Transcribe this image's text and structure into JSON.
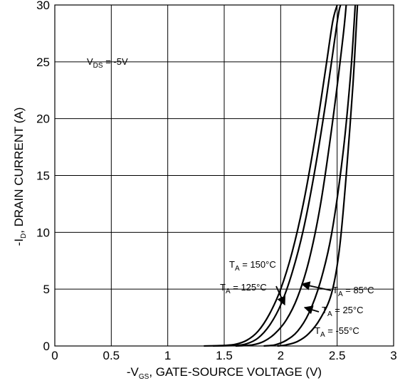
{
  "chart_data": {
    "type": "line",
    "xlabel": {
      "prefix": "-V",
      "sub": "GS",
      "rest": ", GATE-SOURCE VOLTAGE (V)"
    },
    "ylabel": {
      "prefix": "-I",
      "sub": "D",
      "rest": ", DRAIN CURRENT (A)"
    },
    "xlim": [
      0,
      3
    ],
    "ylim": [
      0,
      30
    ],
    "xticks": [
      "0",
      "0.5",
      "1",
      "1.5",
      "2",
      "2.5",
      "3"
    ],
    "yticks": [
      "0",
      "5",
      "10",
      "15",
      "20",
      "25",
      "30"
    ],
    "grid": true,
    "condition": {
      "prefix": "V",
      "sub": "DS",
      "rest": " = -5V"
    },
    "series": [
      {
        "name": "T_A = 150°C",
        "label_pre": "T",
        "label_sub": "A",
        "label_post": " = 150°C",
        "points": [
          [
            1.32,
            0
          ],
          [
            1.5,
            0.05
          ],
          [
            1.6,
            0.15
          ],
          [
            1.7,
            0.5
          ],
          [
            1.8,
            1.3
          ],
          [
            1.9,
            2.8
          ],
          [
            2.0,
            5.0
          ],
          [
            2.1,
            8.2
          ],
          [
            2.2,
            12.5
          ],
          [
            2.3,
            18.0
          ],
          [
            2.4,
            24.5
          ],
          [
            2.46,
            28.5
          ],
          [
            2.5,
            30
          ]
        ]
      },
      {
        "name": "T_A = 125°C",
        "label_pre": "T",
        "label_sub": "A",
        "label_post": " = 125°C",
        "points": [
          [
            1.4,
            0
          ],
          [
            1.6,
            0.05
          ],
          [
            1.7,
            0.2
          ],
          [
            1.8,
            0.7
          ],
          [
            1.9,
            1.8
          ],
          [
            2.0,
            3.6
          ],
          [
            2.1,
            6.4
          ],
          [
            2.2,
            10.2
          ],
          [
            2.3,
            15.3
          ],
          [
            2.4,
            21.5
          ],
          [
            2.5,
            28.5
          ],
          [
            2.53,
            30
          ]
        ]
      },
      {
        "name": "T_A = 85°C",
        "label_pre": "T",
        "label_sub": "A",
        "label_post": " = 85°C",
        "points": [
          [
            1.6,
            0
          ],
          [
            1.75,
            0.1
          ],
          [
            1.85,
            0.4
          ],
          [
            1.95,
            1.1
          ],
          [
            2.05,
            2.3
          ],
          [
            2.15,
            4.3
          ],
          [
            2.25,
            7.5
          ],
          [
            2.35,
            12.3
          ],
          [
            2.45,
            19.0
          ],
          [
            2.55,
            27.0
          ],
          [
            2.58,
            30
          ]
        ]
      },
      {
        "name": "T_A = 25°C",
        "label_pre": "T",
        "label_sub": "A",
        "label_post": " = 25°C",
        "points": [
          [
            1.85,
            0
          ],
          [
            1.95,
            0.1
          ],
          [
            2.05,
            0.5
          ],
          [
            2.15,
            1.3
          ],
          [
            2.25,
            2.9
          ],
          [
            2.35,
            5.6
          ],
          [
            2.45,
            9.8
          ],
          [
            2.55,
            16.8
          ],
          [
            2.62,
            24.0
          ],
          [
            2.66,
            30
          ]
        ]
      },
      {
        "name": "T_A = -55°C",
        "label_pre": "T",
        "label_sub": "A",
        "label_post": " = -55°C",
        "points": [
          [
            1.97,
            0
          ],
          [
            2.05,
            0.1
          ],
          [
            2.15,
            0.4
          ],
          [
            2.25,
            1.1
          ],
          [
            2.35,
            2.4
          ],
          [
            2.45,
            4.6
          ],
          [
            2.52,
            8.5
          ],
          [
            2.58,
            15.0
          ],
          [
            2.64,
            23.0
          ],
          [
            2.68,
            30
          ]
        ]
      }
    ]
  }
}
